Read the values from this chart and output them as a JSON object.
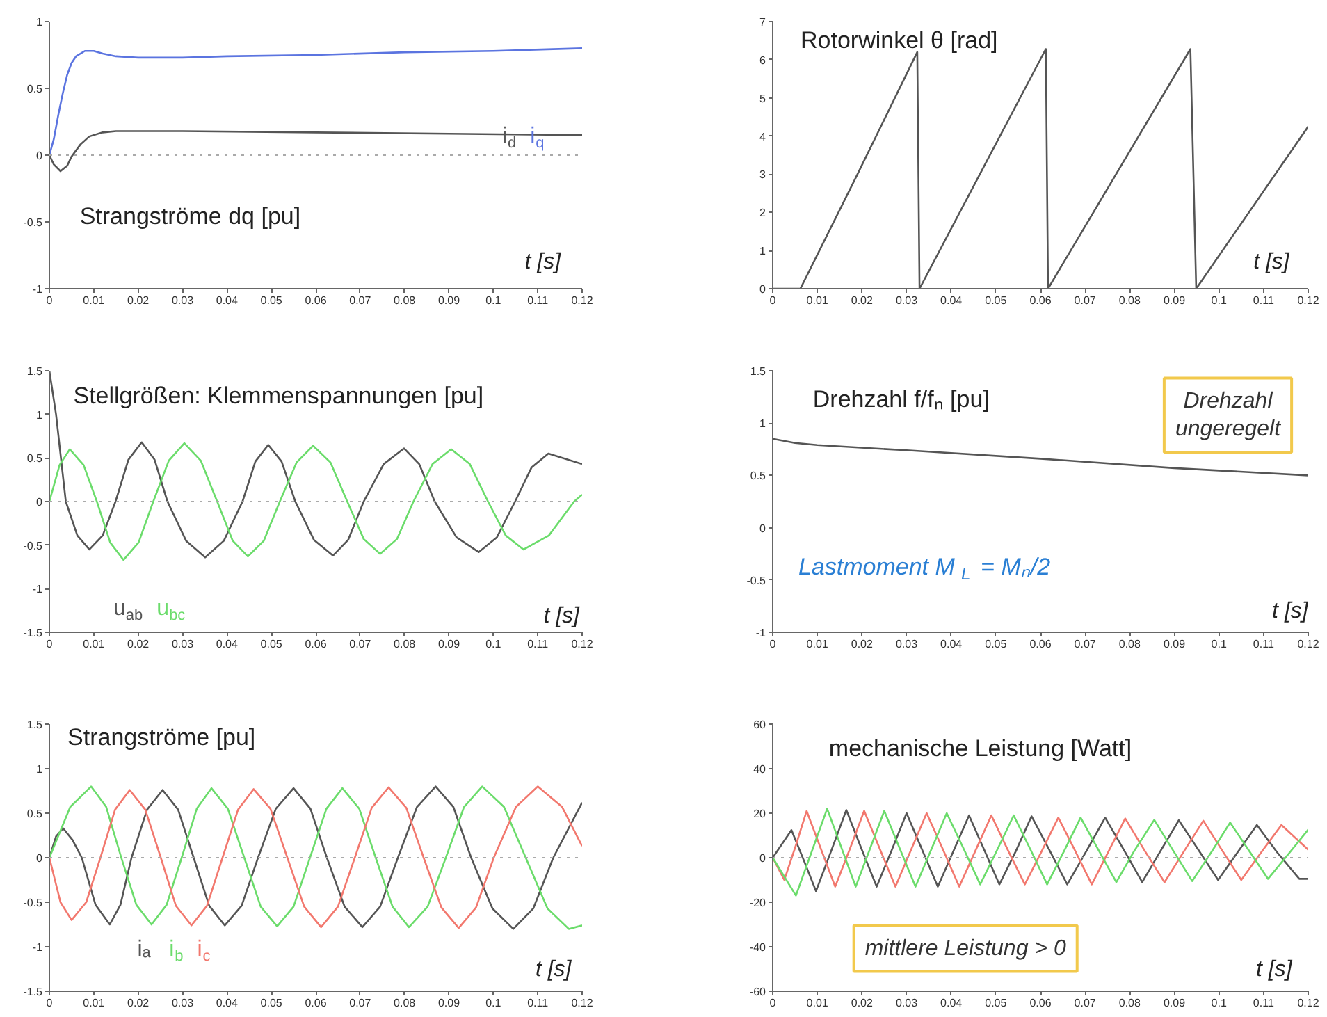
{
  "chart_data": [
    {
      "type": "line",
      "title": "Strangströme dq [pu]",
      "xlabel": "t [s]",
      "xlim": [
        0,
        0.12
      ],
      "xticks": [
        0,
        0.01,
        0.02,
        0.03,
        0.04,
        0.05,
        0.06,
        0.07,
        0.08,
        0.09,
        0.1,
        0.11,
        0.12
      ],
      "ylim": [
        -1,
        1
      ],
      "yticks": [
        -1,
        -0.5,
        0,
        0.5,
        1
      ],
      "ref_lines": [
        {
          "axis": "y",
          "value": 0,
          "line_style": "dotted"
        }
      ],
      "series": [
        {
          "name": "i$_{d}$",
          "color": "#555555",
          "x": [
            0,
            0.001,
            0.0025,
            0.004,
            0.005,
            0.007,
            0.009,
            0.012,
            0.015,
            0.03,
            0.06,
            0.09,
            0.12
          ],
          "values": [
            0,
            -0.07,
            -0.12,
            -0.08,
            -0.01,
            0.08,
            0.14,
            0.17,
            0.18,
            0.18,
            0.17,
            0.16,
            0.15
          ]
        },
        {
          "name": "i$_{q}$",
          "color": "#5b74e0",
          "x": [
            0,
            0.001,
            0.002,
            0.003,
            0.004,
            0.005,
            0.006,
            0.008,
            0.01,
            0.012,
            0.015,
            0.02,
            0.03,
            0.04,
            0.06,
            0.08,
            0.1,
            0.12
          ],
          "values": [
            0,
            0.12,
            0.3,
            0.46,
            0.6,
            0.69,
            0.74,
            0.78,
            0.78,
            0.76,
            0.74,
            0.73,
            0.73,
            0.74,
            0.75,
            0.77,
            0.78,
            0.8
          ]
        }
      ]
    },
    {
      "type": "line",
      "title": "Rotorwinkel θ [rad]",
      "xlabel": "t [s]",
      "xlim": [
        0,
        0.12
      ],
      "xticks": [
        0,
        0.01,
        0.02,
        0.03,
        0.04,
        0.05,
        0.06,
        0.07,
        0.08,
        0.09,
        0.1,
        0.11,
        0.12
      ],
      "ylim": [
        0,
        7
      ],
      "yticks": [
        0,
        1,
        2,
        3,
        4,
        5,
        6,
        7
      ],
      "series": [
        {
          "color": "#555555",
          "x": [
            0,
            0.0062,
            0.019,
            0.0324,
            0.0329,
            0.0612,
            0.0617,
            0.0936,
            0.0949,
            0.12
          ],
          "values": [
            0,
            0,
            3.0,
            6.2,
            0,
            6.28,
            0,
            6.28,
            0,
            4.25
          ]
        }
      ]
    },
    {
      "type": "line",
      "title": "Stellgrößen: Klemmenspannungen [pu]",
      "xlabel": "t [s]",
      "xlim": [
        0,
        0.12
      ],
      "xticks": [
        0,
        0.01,
        0.02,
        0.03,
        0.04,
        0.05,
        0.06,
        0.07,
        0.08,
        0.09,
        0.1,
        0.11,
        0.12
      ],
      "ylim": [
        -1.5,
        1.5
      ],
      "yticks": [
        -1.5,
        -1,
        -0.5,
        0,
        0.5,
        1,
        1.5
      ],
      "ref_lines": [
        {
          "axis": "y",
          "value": 0,
          "line_style": "dotted"
        }
      ],
      "series": [
        {
          "name": "u$_{ab}$",
          "color": "#555555",
          "x": [
            0,
            0.0015,
            0.0037,
            0.0063,
            0.009,
            0.012,
            0.0149,
            0.0178,
            0.0208,
            0.0237,
            0.0266,
            0.0308,
            0.0351,
            0.0393,
            0.0435,
            0.0464,
            0.0493,
            0.0523,
            0.0554,
            0.0596,
            0.0639,
            0.0673,
            0.0708,
            0.0753,
            0.0799,
            0.0833,
            0.0868,
            0.0917,
            0.0967,
            0.1008,
            0.1049,
            0.1086,
            0.1124,
            0.12
          ],
          "values": [
            1.5,
            1.0,
            0,
            -0.39,
            -0.55,
            -0.39,
            0,
            0.48,
            0.68,
            0.48,
            0,
            -0.45,
            -0.64,
            -0.45,
            0,
            0.46,
            0.65,
            0.46,
            0,
            -0.44,
            -0.62,
            -0.44,
            0,
            0.43,
            0.61,
            0.43,
            0,
            -0.41,
            -0.58,
            -0.41,
            0,
            0.39,
            0.55,
            0.43
          ]
        },
        {
          "name": "u$_{bc}$",
          "color": "#6bdc6b",
          "x": [
            0,
            0.0023,
            0.0046,
            0.0077,
            0.0107,
            0.0137,
            0.0167,
            0.0201,
            0.0234,
            0.0269,
            0.0304,
            0.0341,
            0.0378,
            0.0413,
            0.0447,
            0.0483,
            0.0519,
            0.0557,
            0.0594,
            0.0633,
            0.0671,
            0.0708,
            0.0745,
            0.0783,
            0.082,
            0.0863,
            0.0905,
            0.0947,
            0.0988,
            0.1028,
            0.1068,
            0.1125,
            0.1182,
            0.12
          ],
          "values": [
            0,
            0.42,
            0.6,
            0.42,
            0,
            -0.47,
            -0.67,
            -0.47,
            0,
            0.47,
            0.67,
            0.47,
            0,
            -0.45,
            -0.63,
            -0.45,
            0,
            0.45,
            0.64,
            0.45,
            0,
            -0.43,
            -0.6,
            -0.43,
            0,
            0.43,
            0.6,
            0.43,
            0,
            -0.39,
            -0.55,
            -0.39,
            0,
            0.08
          ]
        }
      ]
    },
    {
      "type": "line",
      "title": "Drehzahl f/fₙ [pu]",
      "xlabel": "t [s]",
      "xlim": [
        0,
        0.12
      ],
      "xticks": [
        0,
        0.01,
        0.02,
        0.03,
        0.04,
        0.05,
        0.06,
        0.07,
        0.08,
        0.09,
        0.1,
        0.11,
        0.12
      ],
      "ylim": [
        -1,
        1.5
      ],
      "yticks": [
        -1,
        -0.5,
        0,
        0.5,
        1,
        1.5
      ],
      "annotations": [
        "Drehzahl\nungeregelt",
        "Lastmoment M$_{L}$ = Mₙ/2"
      ],
      "series": [
        {
          "color": "#555555",
          "x": [
            0,
            0.005,
            0.01,
            0.03,
            0.06,
            0.09,
            0.12
          ],
          "values": [
            0.85,
            0.81,
            0.79,
            0.74,
            0.66,
            0.57,
            0.5
          ]
        }
      ]
    },
    {
      "type": "line",
      "title": "Strangströme [pu]",
      "xlabel": "t [s]",
      "xlim": [
        0,
        0.12
      ],
      "xticks": [
        0,
        0.01,
        0.02,
        0.03,
        0.04,
        0.05,
        0.06,
        0.07,
        0.08,
        0.09,
        0.1,
        0.11,
        0.12
      ],
      "ylim": [
        -1.5,
        1.5
      ],
      "yticks": [
        -1.5,
        -1,
        -0.5,
        0,
        0.5,
        1,
        1.5
      ],
      "ref_lines": [
        {
          "axis": "y",
          "value": 0,
          "line_style": "dotted"
        }
      ],
      "series": [
        {
          "name": "iₐ",
          "color": "#555555",
          "x": [
            0,
            0.0015,
            0.0031,
            0.0052,
            0.0073,
            0.0104,
            0.0136,
            0.016,
            0.0185,
            0.022,
            0.0255,
            0.029,
            0.0325,
            0.036,
            0.0395,
            0.0433,
            0.047,
            0.051,
            0.055,
            0.0588,
            0.0625,
            0.0665,
            0.0705,
            0.0745,
            0.0785,
            0.0828,
            0.087,
            0.091,
            0.095,
            0.0998,
            0.1045,
            0.109,
            0.1135,
            0.12
          ],
          "values": [
            0,
            0.24,
            0.33,
            0.2,
            0,
            -0.53,
            -0.75,
            -0.53,
            0,
            0.54,
            0.76,
            0.54,
            0,
            -0.54,
            -0.76,
            -0.54,
            0,
            0.55,
            0.78,
            0.55,
            0,
            -0.55,
            -0.78,
            -0.55,
            0,
            0.57,
            0.8,
            0.57,
            0,
            -0.57,
            -0.8,
            -0.57,
            0,
            0.62
          ]
        },
        {
          "name": "i$_{b}$",
          "color": "#6bdc6b",
          "x": [
            0,
            0.0047,
            0.0094,
            0.0128,
            0.0162,
            0.0196,
            0.023,
            0.0264,
            0.0298,
            0.0332,
            0.0365,
            0.0402,
            0.0439,
            0.0476,
            0.0513,
            0.055,
            0.0587,
            0.0624,
            0.066,
            0.0698,
            0.0735,
            0.0773,
            0.081,
            0.0852,
            0.0893,
            0.0934,
            0.0975,
            0.1024,
            0.1073,
            0.1122,
            0.117,
            0.12
          ],
          "values": [
            0,
            0.57,
            0.8,
            0.57,
            0,
            -0.53,
            -0.75,
            -0.53,
            0,
            0.55,
            0.78,
            0.55,
            0,
            -0.55,
            -0.77,
            -0.55,
            0,
            0.55,
            0.78,
            0.55,
            0,
            -0.55,
            -0.78,
            -0.55,
            0,
            0.57,
            0.8,
            0.57,
            0,
            -0.57,
            -0.8,
            -0.76
          ]
        },
        {
          "name": "i$_{c}$",
          "color": "#f2786e",
          "x": [
            0,
            0.0025,
            0.005,
            0.0083,
            0.0115,
            0.0148,
            0.0181,
            0.0216,
            0.0251,
            0.0285,
            0.032,
            0.0355,
            0.039,
            0.0425,
            0.046,
            0.0498,
            0.0536,
            0.0574,
            0.0612,
            0.065,
            0.0688,
            0.0726,
            0.0764,
            0.0804,
            0.0843,
            0.0883,
            0.0922,
            0.0961,
            0.1001,
            0.1051,
            0.11,
            0.1155,
            0.12
          ],
          "values": [
            0,
            -0.5,
            -0.7,
            -0.5,
            0,
            0.54,
            0.76,
            0.54,
            0,
            -0.54,
            -0.76,
            -0.54,
            0,
            0.54,
            0.77,
            0.55,
            0,
            -0.55,
            -0.78,
            -0.55,
            0,
            0.56,
            0.79,
            0.56,
            0,
            -0.56,
            -0.79,
            -0.56,
            0,
            0.57,
            0.8,
            0.57,
            0.13
          ]
        }
      ]
    },
    {
      "type": "line",
      "title": "mechanische Leistung [Watt]",
      "xlabel": "t [s]",
      "xlim": [
        0,
        0.12
      ],
      "xticks": [
        0,
        0.01,
        0.02,
        0.03,
        0.04,
        0.05,
        0.06,
        0.07,
        0.08,
        0.09,
        0.1,
        0.11,
        0.12
      ],
      "ylim": [
        -60,
        60
      ],
      "yticks": [
        -60,
        -40,
        -20,
        0,
        20,
        40,
        60
      ],
      "annotations": [
        "mittlere Leistung > 0"
      ],
      "ref_lines": [
        {
          "axis": "y",
          "value": 0,
          "line_style": "dotted"
        }
      ],
      "series": [
        {
          "color": "#555555",
          "x": [
            0,
            0.0042,
            0.007,
            0.0097,
            0.0131,
            0.0165,
            0.0199,
            0.0233,
            0.0267,
            0.03,
            0.0335,
            0.037,
            0.0405,
            0.044,
            0.0474,
            0.0508,
            0.0545,
            0.058,
            0.062,
            0.066,
            0.0703,
            0.0745,
            0.0787,
            0.0828,
            0.0869,
            0.091,
            0.0954,
            0.0998,
            0.1042,
            0.1085,
            0.113,
            0.118,
            0.12
          ],
          "values": [
            0,
            12.4,
            -1.3,
            -15,
            3,
            21.4,
            4,
            -13,
            3.5,
            20,
            3.5,
            -13,
            3,
            19,
            3.5,
            -12,
            3,
            18.6,
            3.5,
            -12,
            3,
            18,
            3.5,
            -11,
            3,
            16.8,
            3.5,
            -10,
            2.5,
            14.7,
            2.5,
            -9.5,
            -9.5
          ]
        },
        {
          "color": "#f2786e",
          "x": [
            0,
            0.0026,
            0.0051,
            0.0076,
            0.0108,
            0.014,
            0.0173,
            0.0205,
            0.024,
            0.0275,
            0.031,
            0.0345,
            0.0382,
            0.0418,
            0.0454,
            0.049,
            0.0528,
            0.0565,
            0.0603,
            0.064,
            0.0678,
            0.0715,
            0.0753,
            0.079,
            0.0834,
            0.0878,
            0.0922,
            0.0965,
            0.1008,
            0.105,
            0.1095,
            0.114,
            0.12
          ],
          "values": [
            0,
            -10,
            5,
            21,
            4,
            -13,
            4,
            21,
            4,
            -13,
            3.5,
            20,
            3.5,
            -13,
            3,
            19,
            3,
            -12,
            3,
            18,
            3,
            -12,
            3,
            17.6,
            3,
            -11,
            3,
            16.6,
            3,
            -10,
            2.5,
            14.7,
            3.6
          ]
        },
        {
          "color": "#6bdc6b",
          "x": [
            0,
            0.0052,
            0.0087,
            0.0122,
            0.0154,
            0.0186,
            0.0218,
            0.025,
            0.0285,
            0.032,
            0.0355,
            0.039,
            0.0428,
            0.0465,
            0.0503,
            0.054,
            0.0578,
            0.0615,
            0.0653,
            0.069,
            0.073,
            0.077,
            0.081,
            0.0855,
            0.0898,
            0.094,
            0.0983,
            0.1025,
            0.1068,
            0.111,
            0.1155,
            0.12
          ],
          "values": [
            0,
            -17,
            2.5,
            22,
            4.5,
            -13,
            4,
            21,
            4,
            -13,
            3.5,
            20,
            4,
            -12,
            3.5,
            19,
            3.5,
            -12,
            3,
            18,
            3.5,
            -11,
            3,
            17,
            3,
            -10.5,
            2.5,
            15.8,
            3,
            -9.5,
            1.5,
            12.6
          ]
        }
      ]
    }
  ]
}
